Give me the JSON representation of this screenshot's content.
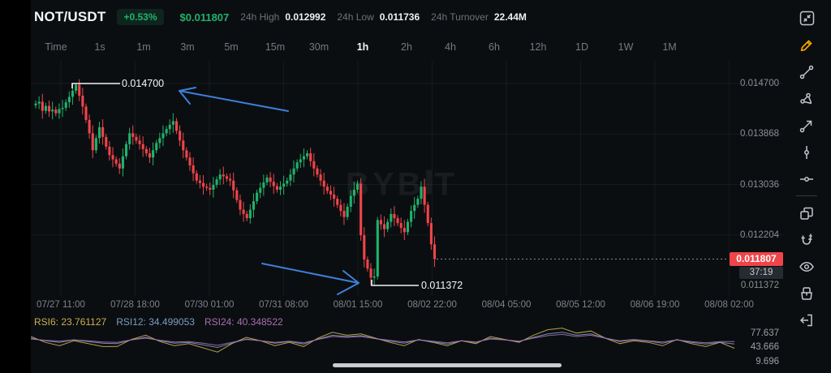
{
  "header": {
    "pair": "NOT/USDT",
    "change_badge": "+0.53%",
    "last_price": "$0.011807",
    "high_label": "24h High",
    "high_value": "0.012992",
    "low_label": "24h Low",
    "low_value": "0.011736",
    "turnover_label": "24h Turnover",
    "turnover_value": "22.44M"
  },
  "timeframes": {
    "items": [
      "Time",
      "1s",
      "1m",
      "3m",
      "5m",
      "15m",
      "30m",
      "1h",
      "2h",
      "4h",
      "6h",
      "12h",
      "1D",
      "1W",
      "1M"
    ],
    "selected": "1h"
  },
  "chart_data": {
    "type": "candlestick",
    "symbol": "NOT/USDT",
    "interval": "1h",
    "title": "",
    "watermark": {
      "left": "BYB",
      "right": "T"
    },
    "y_axis_ticks": [
      "0.014700",
      "0.013868",
      "0.013036",
      "0.012204",
      "0.011372"
    ],
    "y_axis_values": [
      0.0147,
      0.013868,
      0.013036,
      0.012204,
      0.011372
    ],
    "x_axis_ticks": [
      "07/27 11:00",
      "07/28 18:00",
      "07/30 01:00",
      "07/31 08:00",
      "08/01 15:00",
      "08/02 22:00",
      "08/04 05:00",
      "08/05 12:00",
      "08/06 19:00",
      "08/08 02:00"
    ],
    "current_price": {
      "value": 0.011807,
      "label": "0.011807",
      "countdown": "37:19"
    },
    "annotations": {
      "high": {
        "label": "0.014700",
        "value": 0.0147
      },
      "low": {
        "label": "0.011372",
        "value": 0.011372
      }
    },
    "spike_high": {
      "index": 12,
      "value": 0.0147
    },
    "spike_low": {
      "index": 100,
      "value": 0.011372
    },
    "closes": [
      0.01437,
      0.0144,
      0.01425,
      0.01433,
      0.01424,
      0.01427,
      0.01421,
      0.01428,
      0.0143,
      0.01439,
      0.01448,
      0.01458,
      0.01468,
      0.0145,
      0.01432,
      0.0141,
      0.01388,
      0.0136,
      0.0138,
      0.01398,
      0.01382,
      0.01366,
      0.01352,
      0.01345,
      0.01338,
      0.0133,
      0.0135,
      0.0137,
      0.01388,
      0.01382,
      0.01376,
      0.0137,
      0.01362,
      0.01355,
      0.01348,
      0.0136,
      0.01372,
      0.0138,
      0.01388,
      0.01395,
      0.01402,
      0.01408,
      0.01392,
      0.01376,
      0.0136,
      0.01348,
      0.01335,
      0.01322,
      0.0131,
      0.01306,
      0.013,
      0.01298,
      0.01295,
      0.01303,
      0.01312,
      0.0132,
      0.01317,
      0.01313,
      0.0131,
      0.01294,
      0.01278,
      0.01262,
      0.01255,
      0.01248,
      0.01262,
      0.01276,
      0.0129,
      0.01298,
      0.01307,
      0.01315,
      0.01308,
      0.01301,
      0.01295,
      0.013,
      0.01305,
      0.0131,
      0.0132,
      0.0133,
      0.0134,
      0.01345,
      0.0135,
      0.01355,
      0.01342,
      0.0133,
      0.0132,
      0.0131,
      0.013,
      0.01293,
      0.01287,
      0.0128,
      0.0127,
      0.0126,
      0.0125,
      0.01267,
      0.01285,
      0.01295,
      0.01305,
      0.0122,
      0.0118,
      0.01165,
      0.0115,
      0.01152,
      0.01245,
      0.01238,
      0.0123,
      0.01242,
      0.01255,
      0.01248,
      0.0124,
      0.01232,
      0.01225,
      0.01242,
      0.0126,
      0.0127,
      0.0128,
      0.013,
      0.0127,
      0.0124,
      0.01205,
      0.011807
    ],
    "rsi": {
      "axis_values": [
        "77.637",
        "43.666",
        "9.696"
      ],
      "axis_numbers": [
        77.637,
        43.666,
        9.696
      ],
      "series": [
        {
          "name": "RSI6",
          "label": "RSI6: 23.761127",
          "value": 23.761127,
          "color": "#cfae4e",
          "values": [
            52,
            38,
            30,
            42,
            35,
            28,
            28,
            45,
            55,
            40,
            30,
            35,
            25,
            15,
            35,
            50,
            42,
            30,
            38,
            28,
            48,
            62,
            55,
            58,
            48,
            38,
            30,
            45,
            38,
            30,
            42,
            35,
            52,
            45,
            38,
            55,
            68,
            72,
            60,
            65,
            48,
            35,
            42,
            38,
            30,
            45,
            35,
            28,
            38,
            24
          ]
        },
        {
          "name": "RSI12",
          "label": "RSI12: 34.499053",
          "value": 34.499053,
          "color": "#7a9cc0",
          "values": [
            48,
            42,
            38,
            44,
            40,
            36,
            35,
            44,
            50,
            42,
            36,
            38,
            32,
            26,
            36,
            46,
            42,
            36,
            40,
            34,
            46,
            55,
            52,
            54,
            47,
            41,
            36,
            44,
            39,
            34,
            42,
            38,
            48,
            44,
            40,
            50,
            58,
            62,
            55,
            58,
            48,
            40,
            44,
            41,
            36,
            44,
            38,
            34,
            38,
            34
          ]
        },
        {
          "name": "RSI24",
          "label": "RSI24: 40.348522",
          "value": 40.348522,
          "color": "#a96fb3",
          "values": [
            46,
            43,
            41,
            44,
            42,
            39,
            38,
            44,
            48,
            43,
            39,
            40,
            36,
            31,
            38,
            45,
            42,
            38,
            41,
            37,
            45,
            52,
            50,
            52,
            47,
            43,
            39,
            44,
            41,
            37,
            42,
            39,
            46,
            44,
            41,
            48,
            54,
            57,
            52,
            55,
            48,
            42,
            45,
            42,
            39,
            44,
            40,
            37,
            40,
            40
          ]
        }
      ]
    }
  },
  "colors": {
    "up": "#20b26c",
    "down": "#ef454a",
    "badge_red": "#ef454a",
    "accent_yellow": "#f7a600",
    "arrow_blue": "#3f7fd8",
    "grid": "rgba(255,255,255,0.05)",
    "annotation_white": "#f2f3f5"
  },
  "sidebar": {
    "icons": [
      "exit-fullscreen-icon",
      "pencil-icon",
      "trend-line-icon",
      "pitchfork-icon",
      "arrow-line-icon",
      "vertical-line-icon",
      "horizontal-line-icon",
      "layers-icon",
      "magnet-icon",
      "eye-icon",
      "brush-icon",
      "exit-icon"
    ]
  }
}
